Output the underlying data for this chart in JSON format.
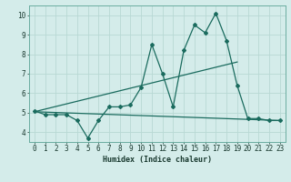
{
  "title": "",
  "xlabel": "Humidex (Indice chaleur)",
  "ylabel": "",
  "background_color": "#d4ecea",
  "grid_color": "#b8d8d4",
  "line_color": "#1a6b5e",
  "x_values": [
    0,
    1,
    2,
    3,
    4,
    5,
    6,
    7,
    8,
    9,
    10,
    11,
    12,
    13,
    14,
    15,
    16,
    17,
    18,
    19,
    20,
    21,
    22,
    23
  ],
  "y_main": [
    5.1,
    4.9,
    4.9,
    4.9,
    4.6,
    3.7,
    4.6,
    5.3,
    5.3,
    5.4,
    6.3,
    8.5,
    7.0,
    5.3,
    8.2,
    9.5,
    9.1,
    10.1,
    8.7,
    6.4,
    4.7,
    4.7,
    4.6,
    4.6
  ],
  "trend1_x": [
    0,
    19
  ],
  "trend1_y": [
    5.05,
    7.6
  ],
  "trend2_x": [
    0,
    23
  ],
  "trend2_y": [
    5.05,
    4.6
  ],
  "ylim": [
    3.5,
    10.5
  ],
  "xlim": [
    -0.5,
    23.5
  ],
  "yticks": [
    4,
    5,
    6,
    7,
    8,
    9,
    10
  ],
  "tick_fontsize": 5.5,
  "xlabel_fontsize": 6.0
}
